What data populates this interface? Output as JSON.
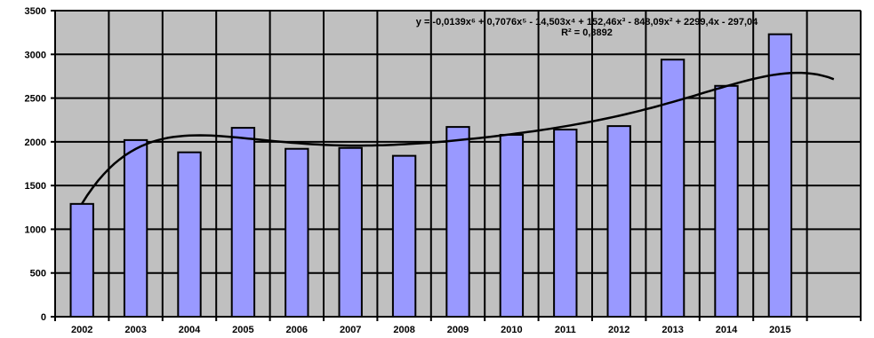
{
  "chart_data": {
    "type": "bar",
    "title": "",
    "xlabel": "",
    "ylabel": "",
    "categories": [
      "2002",
      "2003",
      "2004",
      "2005",
      "2006",
      "2007",
      "2008",
      "2009",
      "2010",
      "2011",
      "2012",
      "2013",
      "2014",
      "2015"
    ],
    "values": [
      1290,
      2020,
      1880,
      2160,
      1920,
      1930,
      1840,
      2170,
      2080,
      2140,
      2180,
      2940,
      2640,
      3230
    ],
    "ylim": [
      0,
      3500
    ],
    "yticks": [
      0,
      500,
      1000,
      1500,
      2000,
      2500,
      3000,
      3500
    ],
    "ytick_labels": [
      "0",
      "500",
      "1000",
      "1500",
      "2000",
      "2500",
      "3000",
      "3500"
    ],
    "grid": true,
    "legend": "none",
    "colors": {
      "plot_bg": "#c0c0c0",
      "bar_fill": "#9999ff",
      "bar_stroke": "#000000",
      "trend": "#000000"
    },
    "trendline": {
      "type": "polynomial",
      "order": 6,
      "equation": "y = -0,0139x⁶ + 0,7076x⁵ - 14,503x⁴ + 152,46x³ - 848,09x² + 2299,4x - 297,04",
      "r_squared_label": "R² = 0,8892",
      "x_extent_periods": 15
    }
  }
}
